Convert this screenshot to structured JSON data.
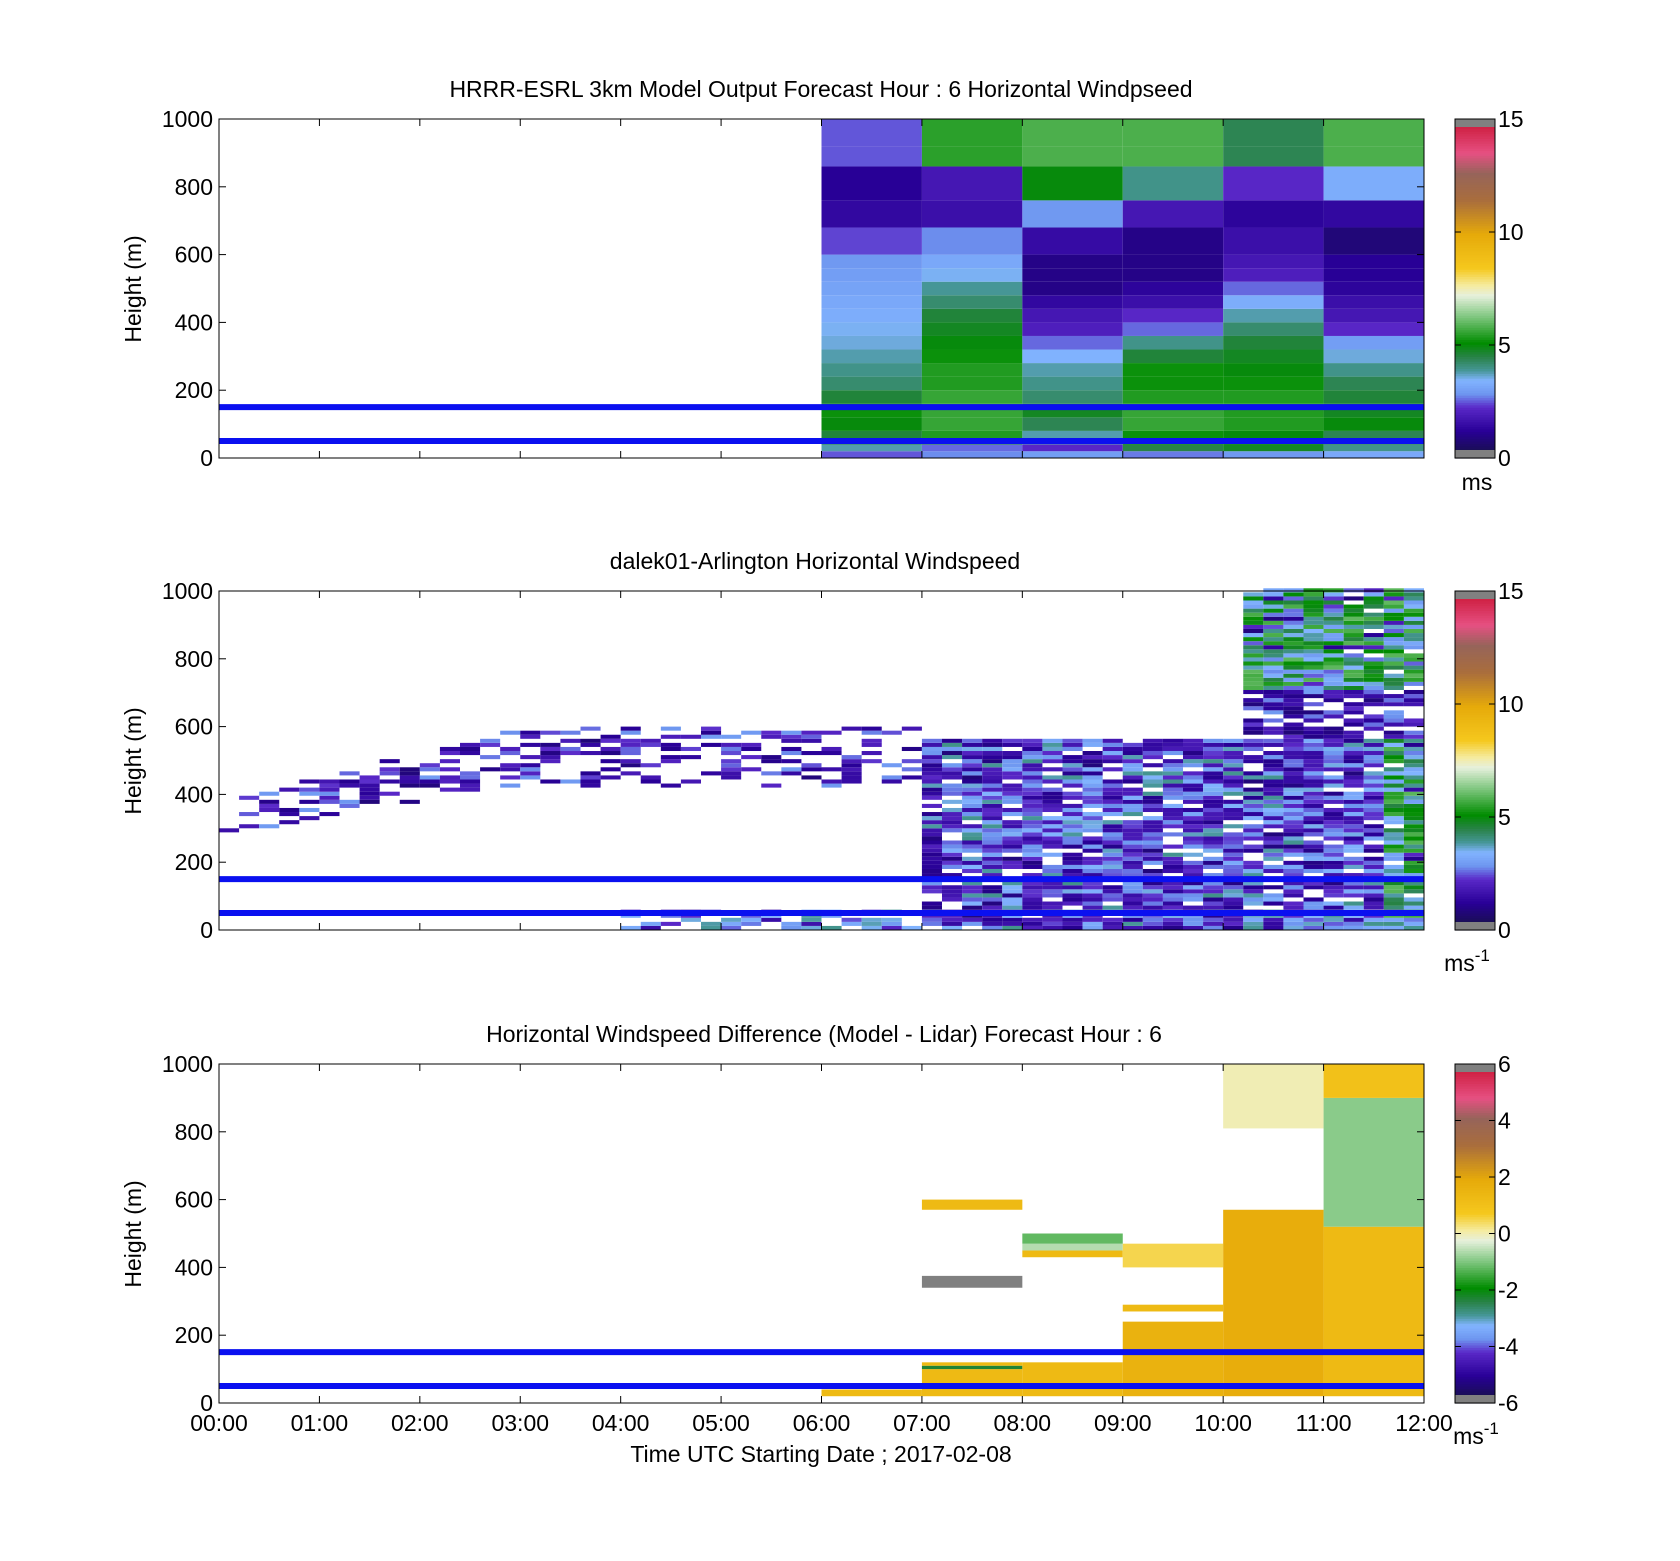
{
  "figure": {
    "xlabel": "Time UTC  Starting Date ; 2017-02-08",
    "x_ticks": [
      "00:00",
      "01:00",
      "02:00",
      "03:00",
      "04:00",
      "05:00",
      "06:00",
      "07:00",
      "08:00",
      "09:00",
      "10:00",
      "11:00",
      "12:00"
    ]
  },
  "chart_data": [
    {
      "type": "heatmap",
      "title": "HRRR-ESRL 3km Model Output   Forecast Hour : 6 Horizontal Windpseed",
      "ylabel": "Height (m)",
      "ylim": [
        0,
        1000
      ],
      "y_ticks": [
        "0",
        "200",
        "400",
        "600",
        "800",
        "1000"
      ],
      "x_range_hours": [
        0,
        12
      ],
      "colorbar": {
        "ticks": [
          "0",
          "5",
          "10",
          "15"
        ],
        "range": [
          0,
          15
        ],
        "unit": "ms"
      },
      "reference_lines_m": [
        50,
        150
      ],
      "data_start_hour": 6,
      "bin_hours": 1,
      "height_bins_m": [
        0,
        20,
        40,
        80,
        120,
        160,
        200,
        240,
        280,
        320,
        360,
        400,
        440,
        480,
        520,
        560,
        600,
        680,
        760,
        860,
        920,
        1000
      ],
      "values": [
        [
          2.5,
          2.8,
          3.0,
          2.7,
          2.9,
          3.2
        ],
        [
          3.8,
          2.6,
          2.2,
          4.5,
          4.8,
          4.0
        ],
        [
          4.6,
          5.4,
          3.8,
          5.2,
          5.0,
          4.4
        ],
        [
          5.0,
          5.6,
          4.4,
          5.6,
          5.4,
          5.0
        ],
        [
          5.2,
          5.6,
          4.8,
          5.6,
          5.4,
          4.8
        ],
        [
          4.6,
          5.6,
          4.2,
          5.4,
          5.4,
          4.6
        ],
        [
          4.2,
          5.4,
          4.0,
          5.2,
          5.2,
          4.4
        ],
        [
          4.0,
          5.4,
          3.8,
          5.2,
          5.0,
          4.0
        ],
        [
          3.8,
          5.2,
          3.4,
          4.6,
          4.8,
          3.6
        ],
        [
          3.6,
          5.0,
          2.6,
          4.0,
          4.6,
          3.0
        ],
        [
          3.5,
          4.8,
          2.0,
          2.6,
          4.2,
          2.2
        ],
        [
          3.3,
          4.6,
          1.8,
          2.2,
          3.8,
          1.8
        ],
        [
          3.2,
          4.2,
          1.4,
          1.6,
          3.3,
          1.6
        ],
        [
          3.1,
          3.9,
          1.0,
          1.3,
          2.6,
          1.3
        ],
        [
          3.0,
          3.5,
          1.0,
          1.0,
          2.0,
          1.2
        ],
        [
          2.9,
          3.2,
          1.0,
          1.0,
          1.8,
          1.2
        ],
        [
          2.4,
          2.8,
          1.5,
          1.0,
          1.6,
          0.8
        ],
        [
          1.4,
          1.6,
          2.9,
          1.8,
          1.3,
          1.4
        ],
        [
          1.2,
          1.8,
          5.0,
          4.0,
          2.2,
          3.3
        ],
        [
          2.5,
          5.5,
          5.8,
          5.8,
          4.4,
          5.8
        ],
        [
          2.5,
          5.5,
          5.8,
          5.8,
          4.4,
          5.8
        ]
      ]
    },
    {
      "type": "heatmap",
      "title": "dalek01-Arlington  Horizontal Windspeed",
      "ylabel": "Height (m)",
      "ylim": [
        0,
        1000
      ],
      "y_ticks": [
        "0",
        "200",
        "400",
        "600",
        "800",
        "1000"
      ],
      "x_range_hours": [
        0,
        12
      ],
      "colorbar": {
        "ticks": [
          "0",
          "5",
          "10",
          "15"
        ],
        "range": [
          0,
          15
        ],
        "unit": "ms",
        "unit_exp": "-1"
      },
      "reference_lines_m": [
        50,
        150
      ]
    },
    {
      "type": "heatmap",
      "title": "Horizontal Windspeed Difference (Model - Lidar) Forecast Hour : 6",
      "ylabel": "Height (m)",
      "ylim": [
        0,
        1000
      ],
      "y_ticks": [
        "0",
        "200",
        "400",
        "600",
        "800",
        "1000"
      ],
      "x_range_hours": [
        0,
        12
      ],
      "colorbar": {
        "ticks": [
          "-6",
          "-4",
          "-2",
          "0",
          "2",
          "4",
          "6"
        ],
        "range": [
          -6,
          6
        ],
        "unit": "ms",
        "unit_exp": "-1"
      },
      "reference_lines_m": [
        50,
        150
      ],
      "blocks": [
        {
          "t0": 6,
          "t1": 7,
          "h0": 20,
          "h1": 40,
          "v": 1.3
        },
        {
          "t0": 7,
          "t1": 8,
          "h0": 20,
          "h1": 100,
          "v": 1.3
        },
        {
          "t0": 7,
          "t1": 8,
          "h0": 100,
          "h1": 110,
          "v": -2.3
        },
        {
          "t0": 7,
          "t1": 8,
          "h0": 110,
          "h1": 120,
          "v": 1.3
        },
        {
          "t0": 7,
          "t1": 8,
          "h0": 340,
          "h1": 375,
          "v": 6.5
        },
        {
          "t0": 7,
          "t1": 8,
          "h0": 570,
          "h1": 600,
          "v": 1.3
        },
        {
          "t0": 8,
          "t1": 9,
          "h0": 20,
          "h1": 120,
          "v": 1.3
        },
        {
          "t0": 8,
          "t1": 9,
          "h0": 430,
          "h1": 450,
          "v": 1.3
        },
        {
          "t0": 8,
          "t1": 9,
          "h0": 450,
          "h1": 470,
          "v": -0.6
        },
        {
          "t0": 8,
          "t1": 9,
          "h0": 470,
          "h1": 500,
          "v": -1.2
        },
        {
          "t0": 9,
          "t1": 10,
          "h0": 20,
          "h1": 240,
          "v": 1.6
        },
        {
          "t0": 9,
          "t1": 10,
          "h0": 270,
          "h1": 290,
          "v": 1.3
        },
        {
          "t0": 9,
          "t1": 10,
          "h0": 400,
          "h1": 470,
          "v": 0.5
        },
        {
          "t0": 10,
          "t1": 11,
          "h0": 20,
          "h1": 570,
          "v": 1.8
        },
        {
          "t0": 10,
          "t1": 11,
          "h0": 810,
          "h1": 1000,
          "v": 0.0
        },
        {
          "t0": 11,
          "t1": 12,
          "h0": 20,
          "h1": 520,
          "v": 1.3
        },
        {
          "t0": 11,
          "t1": 12,
          "h0": 520,
          "h1": 900,
          "v": -0.9
        },
        {
          "t0": 11,
          "t1": 12,
          "h0": 900,
          "h1": 1000,
          "v": 1.0
        }
      ]
    }
  ]
}
